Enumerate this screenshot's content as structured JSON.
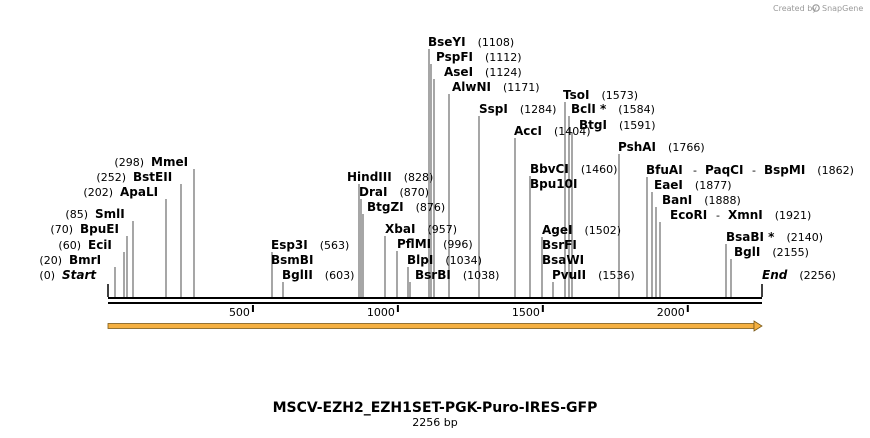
{
  "credit": {
    "text": "Created by",
    "brand": "SnapGene"
  },
  "plasmid": {
    "name": "MSCV-EZH2_EZH1SET-PGK-Puro-IRES-GFP",
    "length_label": "2256 bp",
    "length": 2256
  },
  "axis": {
    "ticks": [
      {
        "value": 500,
        "label": "500"
      },
      {
        "value": 1000,
        "label": "1000"
      },
      {
        "value": 1500,
        "label": "1500"
      },
      {
        "value": 2000,
        "label": "2000"
      }
    ]
  },
  "feature": {
    "start": 0,
    "end": 2256,
    "direction": "forward",
    "color": "#f5b041"
  },
  "sites": [
    {
      "id": "start",
      "name": "Start",
      "pos": "(0)",
      "bp": 0,
      "italic": true,
      "side": "left"
    },
    {
      "id": "bmri",
      "name": "BmrI",
      "pos": "(20)",
      "bp": 20,
      "side": "left"
    },
    {
      "id": "ecii",
      "name": "EciI",
      "pos": "(60)",
      "bp": 60,
      "side": "left"
    },
    {
      "id": "bpuei",
      "name": "BpuEI",
      "pos": "(70)",
      "bp": 70,
      "side": "left"
    },
    {
      "id": "smli",
      "name": "SmlI",
      "pos": "(85)",
      "bp": 85,
      "side": "left"
    },
    {
      "id": "apali",
      "name": "ApaLI",
      "pos": "(202)",
      "bp": 202,
      "side": "left"
    },
    {
      "id": "bsteii",
      "name": "BstEII",
      "pos": "(252)",
      "bp": 252,
      "side": "left"
    },
    {
      "id": "mmei",
      "name": "MmeI",
      "pos": "(298)",
      "bp": 298,
      "side": "left"
    },
    {
      "id": "esp3i",
      "name": "Esp3I",
      "pos": "(563)",
      "bp": 563
    },
    {
      "id": "bsmbi",
      "name": "BsmBI",
      "pos": "",
      "bp": 563
    },
    {
      "id": "bglii",
      "name": "BglII",
      "pos": "(603)",
      "bp": 603
    },
    {
      "id": "hindiii",
      "name": "HindIII",
      "pos": "(828)",
      "bp": 828
    },
    {
      "id": "drai",
      "name": "DraI",
      "pos": "(870)",
      "bp": 870
    },
    {
      "id": "btgzi",
      "name": "BtgZI",
      "pos": "(876)",
      "bp": 876
    },
    {
      "id": "xbai",
      "name": "XbaI",
      "pos": "(957)",
      "bp": 957
    },
    {
      "id": "pflmi",
      "name": "PflMI",
      "pos": "(996)",
      "bp": 996
    },
    {
      "id": "blpi",
      "name": "BlpI",
      "pos": "(1034)",
      "bp": 1034
    },
    {
      "id": "bsrbi",
      "name": "BsrBI",
      "pos": "(1038)",
      "bp": 1038
    },
    {
      "id": "bseyi",
      "name": "BseYI",
      "pos": "(1108)",
      "bp": 1108
    },
    {
      "id": "pspfi",
      "name": "PspFI",
      "pos": "(1112)",
      "bp": 1112
    },
    {
      "id": "asei",
      "name": "AseI",
      "pos": "(1124)",
      "bp": 1124
    },
    {
      "id": "alwni",
      "name": "AlwNI",
      "pos": "(1171)",
      "bp": 1171
    },
    {
      "id": "sspi",
      "name": "SspI",
      "pos": "(1284)",
      "bp": 1284
    },
    {
      "id": "acci",
      "name": "AccI",
      "pos": "(1404)",
      "bp": 1404
    },
    {
      "id": "bbvci",
      "name": "BbvCI",
      "pos": "(1460)",
      "bp": 1460
    },
    {
      "id": "bpu10i",
      "name": "Bpu10I",
      "pos": "",
      "bp": 1460
    },
    {
      "id": "agei",
      "name": "AgeI",
      "pos": "(1502)",
      "bp": 1502
    },
    {
      "id": "bsrfi",
      "name": "BsrFI",
      "pos": "",
      "bp": 1502
    },
    {
      "id": "bsawi",
      "name": "BsaWI",
      "pos": "",
      "bp": 1502
    },
    {
      "id": "pvuii",
      "name": "PvuII",
      "pos": "(1536)",
      "bp": 1536
    },
    {
      "id": "tsoi",
      "name": "TsoI",
      "pos": "(1573)",
      "bp": 1573
    },
    {
      "id": "bcli",
      "name": "BclI *",
      "pos": "(1584)",
      "bp": 1584
    },
    {
      "id": "btgi",
      "name": "BtgI",
      "pos": "(1591)",
      "bp": 1591
    },
    {
      "id": "pshai",
      "name": "PshAI",
      "pos": "(1766)",
      "bp": 1766
    },
    {
      "id": "bfuai",
      "name": "BfuAI",
      "pos": "",
      "bp": 1862
    },
    {
      "id": "paqci",
      "name": "PaqCI",
      "pos": "",
      "bp": 1862
    },
    {
      "id": "bspmi",
      "name": "BspMI",
      "pos": "(1862)",
      "bp": 1862
    },
    {
      "id": "eaei",
      "name": "EaeI",
      "pos": "(1877)",
      "bp": 1877
    },
    {
      "id": "bani",
      "name": "BanI",
      "pos": "(1888)",
      "bp": 1888
    },
    {
      "id": "ecori",
      "name": "EcoRI",
      "pos": "",
      "bp": 1921
    },
    {
      "id": "xmni",
      "name": "XmnI",
      "pos": "(1921)",
      "bp": 1921
    },
    {
      "id": "bsabi",
      "name": "BsaBI *",
      "pos": "(2140)",
      "bp": 2140
    },
    {
      "id": "bgli",
      "name": "BglI",
      "pos": "(2155)",
      "bp": 2155
    },
    {
      "id": "end",
      "name": "End",
      "pos": "(2256)",
      "bp": 2256,
      "italic": true
    }
  ]
}
